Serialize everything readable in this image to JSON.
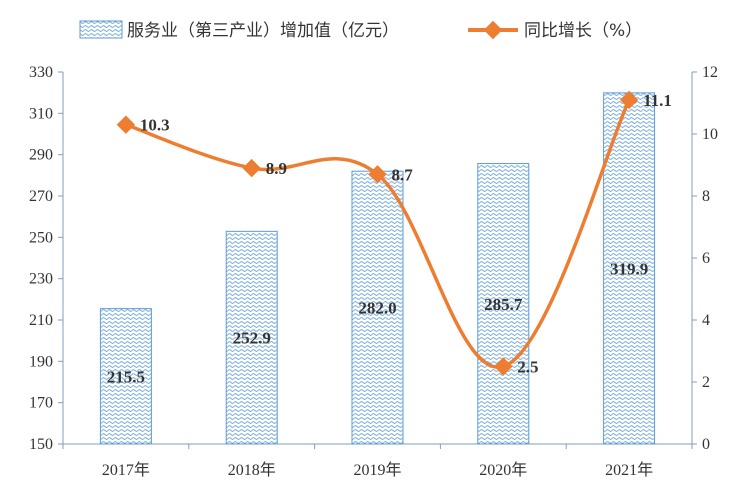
{
  "chart_data": {
    "type": "bar",
    "categories": [
      "2017年",
      "2018年",
      "2019年",
      "2020年",
      "2021年"
    ],
    "series": [
      {
        "name": "服务业（第三产业）增加值（亿元）",
        "type": "bar",
        "axis": "left",
        "values": [
          215.5,
          252.9,
          282.0,
          285.7,
          319.9
        ],
        "labels": [
          "215.5",
          "252.9",
          "282.0",
          "285.7",
          "319.9"
        ],
        "color": "#5b9bd5"
      },
      {
        "name": "同比增长（%）",
        "type": "line",
        "axis": "right",
        "values": [
          10.3,
          8.9,
          8.7,
          2.5,
          11.1
        ],
        "labels": [
          "10.3",
          "8.9",
          "8.7",
          "2.5",
          "11.1"
        ],
        "color": "#ed7d31"
      }
    ],
    "y_left": {
      "min": 150,
      "max": 330,
      "ticks": [
        "150",
        "170",
        "190",
        "210",
        "230",
        "250",
        "270",
        "290",
        "310",
        "330"
      ]
    },
    "y_right": {
      "min": 0,
      "max": 12,
      "ticks": [
        "0",
        "2",
        "4",
        "6",
        "8",
        "10",
        "12"
      ]
    },
    "legend_position": "top",
    "grid": false
  }
}
